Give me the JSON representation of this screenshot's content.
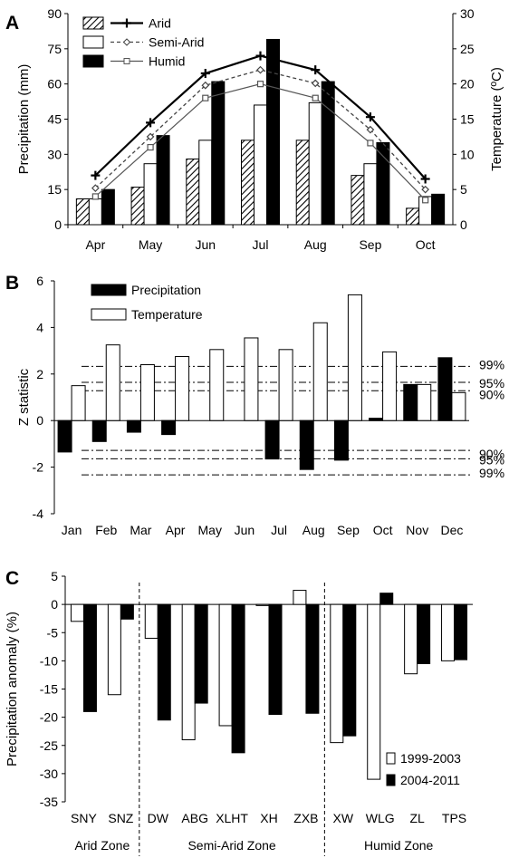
{
  "panel_labels": [
    "A",
    "B",
    "C"
  ],
  "chart_data": [
    {
      "panel": "A",
      "type": "bar",
      "categories": [
        "Apr",
        "May",
        "Jun",
        "Jul",
        "Aug",
        "Sep",
        "Oct"
      ],
      "ylabel": "Precipitation (mm)",
      "ylim": [
        0,
        90
      ],
      "yticks": [
        0,
        15,
        30,
        45,
        60,
        75,
        90
      ],
      "y2label": "Temperature (ºC)",
      "y2lim": [
        0,
        30
      ],
      "y2ticks": [
        0,
        5,
        10,
        15,
        20,
        25,
        30
      ],
      "legend_position": "top-left",
      "series": [
        {
          "name": "Arid",
          "kind": "bar",
          "fill": "hatched",
          "values": [
            11,
            16,
            28,
            36,
            36,
            21,
            7
          ]
        },
        {
          "name": "Semi-Arid",
          "kind": "bar",
          "fill": "#ffffff",
          "values": [
            11,
            26,
            36,
            51,
            52,
            26,
            12
          ]
        },
        {
          "name": "Humid",
          "kind": "bar",
          "fill": "#000000",
          "values": [
            15,
            38,
            61,
            79,
            61,
            35,
            13
          ]
        },
        {
          "name": "Arid",
          "kind": "line",
          "marker": "plus",
          "axis": "right",
          "values": [
            7,
            14.5,
            21.5,
            24,
            22,
            15.3,
            6.5
          ]
        },
        {
          "name": "Semi-Arid",
          "kind": "line",
          "marker": "diamond",
          "axis": "right",
          "values": [
            5.2,
            12.5,
            19.8,
            22,
            20.1,
            13.5,
            5
          ]
        },
        {
          "name": "Humid",
          "kind": "line",
          "marker": "square",
          "axis": "right",
          "values": [
            4,
            11,
            18,
            20,
            18,
            11.6,
            3.5
          ]
        }
      ]
    },
    {
      "panel": "B",
      "type": "bar",
      "categories": [
        "Jan",
        "Feb",
        "Mar",
        "Apr",
        "May",
        "Jun",
        "Jul",
        "Aug",
        "Sep",
        "Oct",
        "Nov",
        "Dec"
      ],
      "ylabel": "Z statistic",
      "ylim": [
        -4,
        6
      ],
      "yticks": [
        -4,
        -2,
        0,
        2,
        4,
        6
      ],
      "legend_position": "top-left",
      "series": [
        {
          "name": "Precipitation",
          "fill": "#000000",
          "values": [
            -1.35,
            -0.9,
            -0.5,
            -0.6,
            0,
            0,
            -1.65,
            -2.1,
            -1.7,
            0.1,
            1.55,
            2.7
          ]
        },
        {
          "name": "Temperature",
          "fill": "#ffffff",
          "values": [
            1.5,
            3.25,
            2.4,
            2.75,
            3.05,
            3.55,
            3.05,
            4.2,
            5.4,
            2.95,
            1.55,
            1.2
          ]
        }
      ],
      "reference_lines": [
        {
          "value": 2.33,
          "label": "99%"
        },
        {
          "value": 1.64,
          "label": "95%"
        },
        {
          "value": 1.28,
          "label": "90%"
        },
        {
          "value": -1.28,
          "label": "90%"
        },
        {
          "value": -1.64,
          "label": "95%"
        },
        {
          "value": -2.33,
          "label": "99%"
        }
      ]
    },
    {
      "panel": "C",
      "type": "bar",
      "categories": [
        "SNY",
        "SNZ",
        "DW",
        "ABG",
        "XLHT",
        "XH",
        "ZXB",
        "XW",
        "WLG",
        "ZL",
        "TPS"
      ],
      "ylabel": "Precipitation anomaly  (%)",
      "ylim": [
        -35,
        5
      ],
      "yticks": [
        -35,
        -30,
        -25,
        -20,
        -15,
        -10,
        -5,
        0,
        5
      ],
      "legend_position": "bottom-right",
      "zones": [
        {
          "label": "Arid Zone",
          "from": 0,
          "to": 1
        },
        {
          "label": "Semi-Arid Zone",
          "from": 2,
          "to": 6
        },
        {
          "label": "Humid Zone",
          "from": 7,
          "to": 10
        }
      ],
      "series": [
        {
          "name": "1999-2003",
          "fill": "#ffffff",
          "values": [
            -3,
            -16,
            -6,
            -24,
            -21.5,
            -0.2,
            2.5,
            -24.5,
            -31,
            -12.3,
            -10
          ]
        },
        {
          "name": "2004-2011",
          "fill": "#000000",
          "values": [
            -19,
            -2.6,
            -20.5,
            -17.5,
            -26.3,
            -19.5,
            -19.3,
            -23.3,
            2,
            -10.5,
            -9.8
          ]
        }
      ]
    }
  ]
}
